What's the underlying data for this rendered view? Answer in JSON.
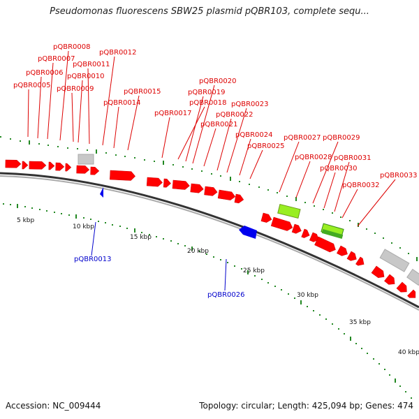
{
  "title": "Pseudomonas fluorescens SBW25 plasmid pQBR103, complete sequ...",
  "footer": {
    "accession_label": "Accession:",
    "accession": "NC_009444",
    "topology_label": "Topology:",
    "topology": "circular;",
    "length_label": "Length:",
    "length": "425,094 bp;",
    "genes_label": "Genes:",
    "genes": "474"
  },
  "scale_labels": [
    "5 kbp",
    "10 kbp",
    "15 kbp",
    "20 kbp",
    "25 kbp",
    "30 kbp",
    "35 kbp",
    "40 kbp"
  ],
  "colors": {
    "forward_gene": "#ff0000",
    "reverse_gene": "#0000ee",
    "forward_label": "#dd0000",
    "reverse_label": "#0000cc",
    "gc_bar": "#999999",
    "other_feature_green": "#99ee22",
    "other_feature_darkgreen": "#44aa22",
    "grey_feature": "#c8c8c8",
    "tick": "#228822"
  },
  "forward_labels": [
    "pQBR0005",
    "pQBR0006",
    "pQBR0007",
    "pQBR0008",
    "pQBR0009",
    "pQBR0010",
    "pQBR0011",
    "pQBR0012",
    "pQBR0014",
    "pQBR0015",
    "pQBR0017",
    "pQBR0018",
    "pQBR0019",
    "pQBR0020",
    "pQBR0021",
    "pQBR0022",
    "pQBR0023",
    "pQBR0024",
    "pQBR0025",
    "pQBR0027",
    "pQBR0028",
    "pQBR0029",
    "pQBR0030",
    "pQBR0031",
    "pQBR0032",
    "pQBR0033"
  ],
  "reverse_labels": [
    "pQBR0013",
    "pQBR0026"
  ]
}
